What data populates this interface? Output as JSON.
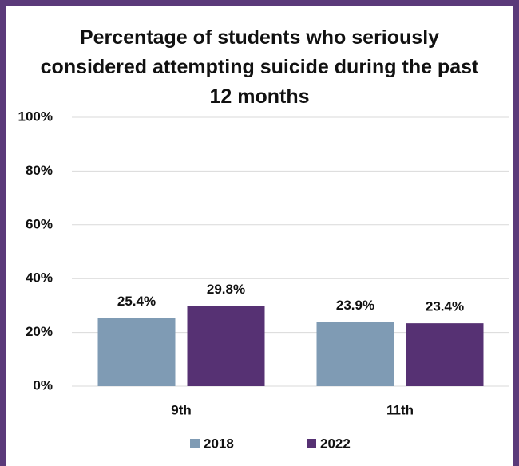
{
  "chart_data": {
    "type": "bar",
    "title": "Percentage of students who seriously considered attempting suicide during the past 12 months",
    "categories": [
      "9th",
      "11th"
    ],
    "series": [
      {
        "name": "2018",
        "color": "#7f9bb4",
        "values": [
          25.4,
          23.9
        ],
        "value_labels": [
          "25.4%",
          "23.9%"
        ]
      },
      {
        "name": "2022",
        "color": "#563173",
        "values": [
          29.8,
          23.4
        ],
        "value_labels": [
          "29.8%",
          "23.4%"
        ]
      }
    ],
    "ylim": [
      0,
      100
    ],
    "yticks": [
      {
        "value": 0,
        "label": "0%"
      },
      {
        "value": 20,
        "label": "20%"
      },
      {
        "value": 40,
        "label": "40%"
      },
      {
        "value": 60,
        "label": "60%"
      },
      {
        "value": 80,
        "label": "80%"
      },
      {
        "value": 100,
        "label": "100%"
      }
    ],
    "grid": true,
    "legend": "bottom"
  }
}
